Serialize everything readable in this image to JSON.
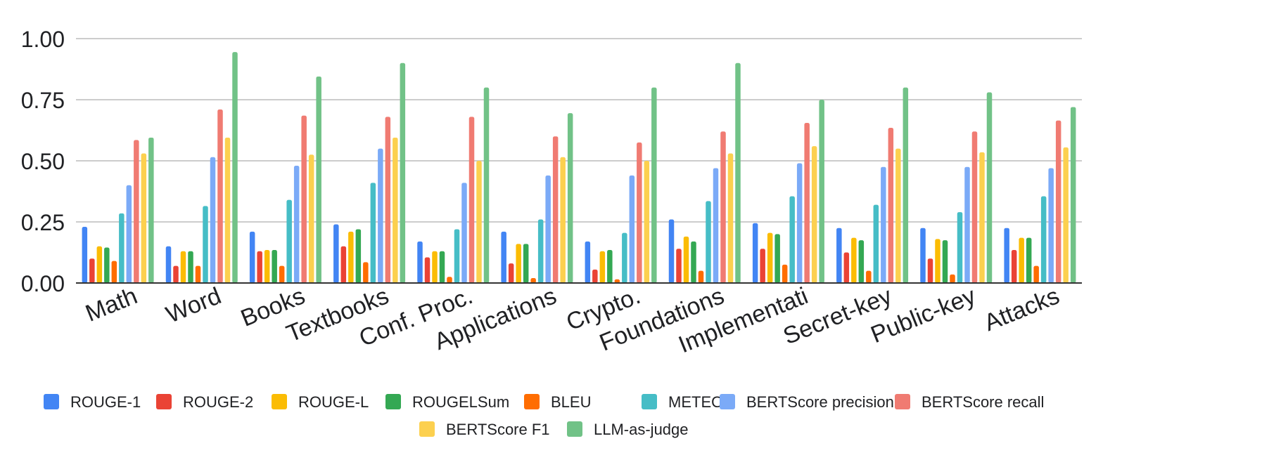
{
  "chart_data": {
    "type": "bar",
    "title": "",
    "xlabel": "",
    "ylabel": "",
    "ylim": [
      0,
      1
    ],
    "yticks": [
      "0.00",
      "0.25",
      "0.50",
      "0.75",
      "1.00"
    ],
    "ytick_values": [
      0,
      0.25,
      0.5,
      0.75,
      1.0
    ],
    "grid": true,
    "legend_position": "bottom",
    "categories": [
      "Math",
      "Word",
      "Books",
      "Textbooks",
      "Conf. Proc.",
      "Applications",
      "Crypto.",
      "Foundations",
      "Implementati",
      "Secret-key",
      "Public-key",
      "Attacks"
    ],
    "series": [
      {
        "name": "ROUGE-1",
        "color": "#4285F4",
        "values": [
          0.23,
          0.15,
          0.21,
          0.24,
          0.17,
          0.21,
          0.17,
          0.26,
          0.245,
          0.225,
          0.225,
          0.225
        ]
      },
      {
        "name": "ROUGE-2",
        "color": "#EA4335",
        "values": [
          0.1,
          0.07,
          0.13,
          0.15,
          0.105,
          0.08,
          0.055,
          0.14,
          0.14,
          0.125,
          0.1,
          0.135
        ]
      },
      {
        "name": "ROUGE-L",
        "color": "#FBBC04",
        "values": [
          0.15,
          0.13,
          0.135,
          0.21,
          0.13,
          0.16,
          0.13,
          0.19,
          0.205,
          0.185,
          0.18,
          0.185
        ]
      },
      {
        "name": "ROUGELSum",
        "color": "#34A853",
        "values": [
          0.145,
          0.13,
          0.135,
          0.22,
          0.13,
          0.16,
          0.135,
          0.17,
          0.2,
          0.175,
          0.175,
          0.185
        ]
      },
      {
        "name": "BLEU",
        "color": "#FF6D01",
        "values": [
          0.09,
          0.07,
          0.07,
          0.085,
          0.025,
          0.02,
          0.015,
          0.05,
          0.075,
          0.05,
          0.035,
          0.07
        ]
      },
      {
        "name": "METEOR",
        "color": "#46BDC6",
        "values": [
          0.285,
          0.315,
          0.34,
          0.41,
          0.22,
          0.26,
          0.205,
          0.335,
          0.355,
          0.32,
          0.29,
          0.355
        ]
      },
      {
        "name": "BERTScore precision",
        "color": "#7BAAF7",
        "values": [
          0.4,
          0.515,
          0.48,
          0.55,
          0.41,
          0.44,
          0.44,
          0.47,
          0.49,
          0.475,
          0.475,
          0.47
        ]
      },
      {
        "name": "BERTScore recall",
        "color": "#F07B72",
        "values": [
          0.585,
          0.71,
          0.685,
          0.68,
          0.68,
          0.6,
          0.575,
          0.62,
          0.655,
          0.635,
          0.62,
          0.665
        ]
      },
      {
        "name": "BERTScore F1",
        "color": "#FCD04F",
        "values": [
          0.53,
          0.595,
          0.525,
          0.595,
          0.5,
          0.515,
          0.5,
          0.53,
          0.56,
          0.55,
          0.535,
          0.555
        ]
      },
      {
        "name": "LLM-as-judge",
        "color": "#71C287",
        "values": [
          0.595,
          0.945,
          0.845,
          0.9,
          0.8,
          0.695,
          0.8,
          0.9,
          0.75,
          0.8,
          0.78,
          0.72
        ]
      }
    ]
  }
}
